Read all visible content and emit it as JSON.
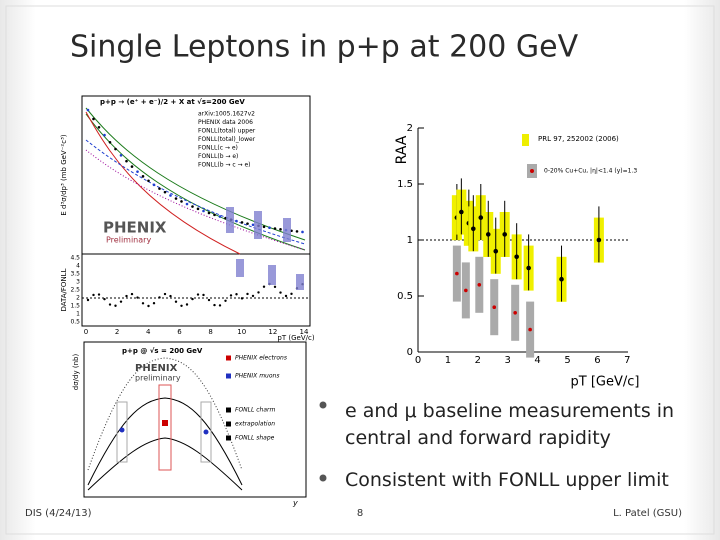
{
  "title": "Single Leptons in p+p at 200 GeV",
  "bullets": [
    "e and μ baseline measurements in central and forward rapidity",
    "Consistent with FONLL upper limit"
  ],
  "footer": {
    "left": "DIS (4/24/13)",
    "center": "8",
    "right": "L. Patel (GSU)"
  },
  "figures": {
    "spectrum": {
      "header": "p+p → (e⁺ + e⁻)/2 + X at √s=200 GeV",
      "legend": [
        "arXiv:1005.1627v2",
        "PHENIX data 2006",
        "FONLL(total) upper",
        "FONLL(total)_lower",
        "FONLL(c → e)",
        "FONLL(b → e)",
        "FONLL(b → c → e)"
      ],
      "logo": "PHENIX",
      "logo_sub": "Preliminary",
      "y_label": "E d³σ/dp³ (mb GeV⁻²c³)",
      "ratio_label": "DATA/FONLL",
      "x_label": "pT (GeV/c)",
      "x_ticks": [
        "0",
        "2",
        "4",
        "6",
        "8",
        "10",
        "12",
        "14"
      ],
      "ratio_ticks": [
        "0.5",
        "1",
        "1.5",
        "2",
        "2.5",
        "3",
        "3.5",
        "4",
        "4.5"
      ]
    },
    "raa": {
      "y_label": "RAA",
      "x_label": "pT [GeV/c]",
      "x_ticks": [
        "0",
        "1",
        "2",
        "3",
        "4",
        "5",
        "6",
        "7"
      ],
      "y_ticks": [
        "0",
        "0.5",
        "1",
        "1.5",
        "2"
      ],
      "reference": "PRL 97, 252002 (2006)",
      "legend": "0-20% Cu+Cu, |η|<1.4 (y)=1.3"
    },
    "rapidity": {
      "header": "p+p @ √s = 200 GeV",
      "logo": "PHENIX",
      "logo_sub": "preliminary",
      "legend": [
        "PHENIX electrons",
        "PHENIX muons",
        "FONLL charm",
        "extrapolation",
        "FONLL shape"
      ],
      "y_label": "dσ/dy (nb)",
      "x_label": "y"
    }
  }
}
